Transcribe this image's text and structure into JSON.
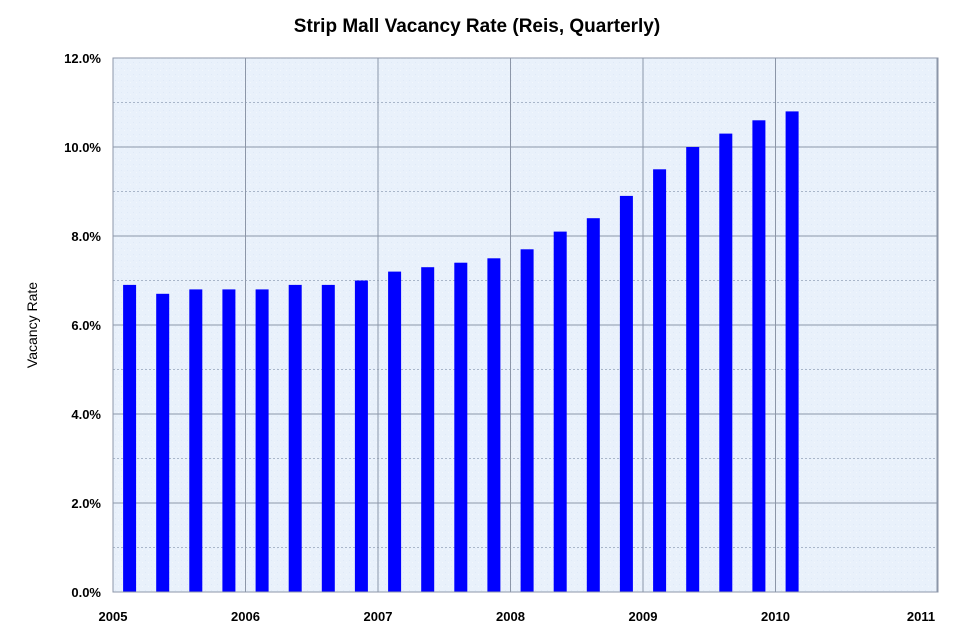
{
  "chart_data": {
    "type": "bar",
    "title": "Strip Mall Vacancy Rate (Reis, Quarterly)",
    "xlabel": "",
    "ylabel": "Vacancy Rate",
    "x_tick_labels": [
      "2005",
      "2006",
      "2007",
      "2008",
      "2009",
      "2010",
      "2011"
    ],
    "y_tick_labels": [
      "0.0%",
      "2.0%",
      "4.0%",
      "6.0%",
      "8.0%",
      "10.0%",
      "12.0%"
    ],
    "ylim": [
      0,
      12
    ],
    "categories": [
      "2005 Q1",
      "2005 Q2",
      "2005 Q3",
      "2005 Q4",
      "2006 Q1",
      "2006 Q2",
      "2006 Q3",
      "2006 Q4",
      "2007 Q1",
      "2007 Q2",
      "2007 Q3",
      "2007 Q4",
      "2008 Q1",
      "2008 Q2",
      "2008 Q3",
      "2008 Q4",
      "2009 Q1",
      "2009 Q2",
      "2009 Q3",
      "2009 Q4",
      "2010 Q1"
    ],
    "values": [
      6.9,
      6.7,
      6.8,
      6.8,
      6.8,
      6.9,
      6.9,
      7.0,
      7.2,
      7.3,
      7.4,
      7.5,
      7.7,
      8.1,
      8.4,
      8.9,
      9.5,
      10.0,
      10.3,
      10.6,
      10.8
    ],
    "grid": true,
    "legend": "none",
    "colors": {
      "bar": "#0000ff",
      "plot_background": "#e9f1fb",
      "grid_major": "#8c96a8",
      "grid_minor": "#a9b6c9"
    }
  }
}
